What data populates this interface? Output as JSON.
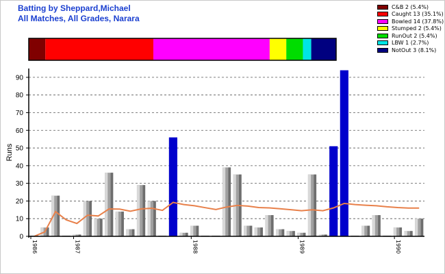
{
  "title_line1": "Batting by Sheppard,Michael",
  "title_line2": "All Matches, All Grades, Narara",
  "legend": [
    {
      "label": "C&B 2 (5.4%)",
      "color": "#800000",
      "pct": 5.4
    },
    {
      "label": "Caught 13 (35.1%)",
      "color": "#ff0000",
      "pct": 35.1
    },
    {
      "label": "Bowled 14 (37.8%)",
      "color": "#ff00ff",
      "pct": 37.8
    },
    {
      "label": "Stumped 2 (5.4%)",
      "color": "#ffff00",
      "pct": 5.4
    },
    {
      "label": "RunOut 2 (5.4%)",
      "color": "#00dd00",
      "pct": 5.4
    },
    {
      "label": "LBW 1 (2.7%)",
      "color": "#00e5e5",
      "pct": 2.7
    },
    {
      "label": "NotOut 3 (8.1%)",
      "color": "#000080",
      "pct": 8.1
    }
  ],
  "colors": {
    "out": "#a0a0a0",
    "not_out": "#0000cc",
    "average": "#e8804a"
  },
  "chart_data": {
    "type": "bar",
    "title": "",
    "xlabel": "",
    "ylabel": "Runs",
    "ylim": [
      0,
      95
    ],
    "yticks": [
      0,
      10,
      20,
      30,
      40,
      50,
      60,
      70,
      80,
      90
    ],
    "grid": "horizontal dashed",
    "year_labels": [
      {
        "label": "1986",
        "after_bar": 0
      },
      {
        "label": "1987",
        "after_bar": 4
      },
      {
        "label": "1988",
        "after_bar": 15
      },
      {
        "label": "1989",
        "after_bar": 25
      },
      {
        "label": "1990",
        "after_bar": 34
      }
    ],
    "innings": [
      {
        "runs": 0,
        "not_out": false
      },
      {
        "runs": 5,
        "not_out": false
      },
      {
        "runs": 23,
        "not_out": false
      },
      {
        "runs": 0,
        "not_out": false
      },
      {
        "runs": 1,
        "not_out": false
      },
      {
        "runs": 20,
        "not_out": false
      },
      {
        "runs": 10,
        "not_out": false
      },
      {
        "runs": 36,
        "not_out": false
      },
      {
        "runs": 14,
        "not_out": false
      },
      {
        "runs": 4,
        "not_out": false
      },
      {
        "runs": 29,
        "not_out": false
      },
      {
        "runs": 20,
        "not_out": false
      },
      {
        "runs": 0,
        "not_out": false
      },
      {
        "runs": 56,
        "not_out": true
      },
      {
        "runs": 2,
        "not_out": false
      },
      {
        "runs": 6,
        "not_out": false
      },
      {
        "runs": 0,
        "not_out": false
      },
      {
        "runs": 0,
        "not_out": false
      },
      {
        "runs": 39,
        "not_out": false
      },
      {
        "runs": 35,
        "not_out": false
      },
      {
        "runs": 6,
        "not_out": false
      },
      {
        "runs": 5,
        "not_out": false
      },
      {
        "runs": 12,
        "not_out": false
      },
      {
        "runs": 4,
        "not_out": false
      },
      {
        "runs": 3,
        "not_out": false
      },
      {
        "runs": 2,
        "not_out": false
      },
      {
        "runs": 35,
        "not_out": false
      },
      {
        "runs": 1,
        "not_out": false
      },
      {
        "runs": 51,
        "not_out": true
      },
      {
        "runs": 94,
        "not_out": true
      },
      {
        "runs": 0,
        "not_out": false
      },
      {
        "runs": 6,
        "not_out": false
      },
      {
        "runs": 12,
        "not_out": false
      },
      {
        "runs": 0,
        "not_out": false
      },
      {
        "runs": 5,
        "not_out": false
      },
      {
        "runs": 3,
        "not_out": false
      },
      {
        "runs": 10,
        "not_out": false
      }
    ],
    "average_line": [
      0,
      2.5,
      14,
      9.3,
      7.3,
      12,
      11.5,
      15.5,
      15.4,
      14.2,
      15.5,
      15.9,
      14.7,
      19.2,
      18,
      17.3,
      16.2,
      15.2,
      16.6,
      17.5,
      17.1,
      16.3,
      16.1,
      15.6,
      15.1,
      14.5,
      15,
      14.5,
      16.1,
      18.6,
      18,
      17.6,
      17.3,
      16.7,
      16.3,
      16,
      16
    ]
  }
}
